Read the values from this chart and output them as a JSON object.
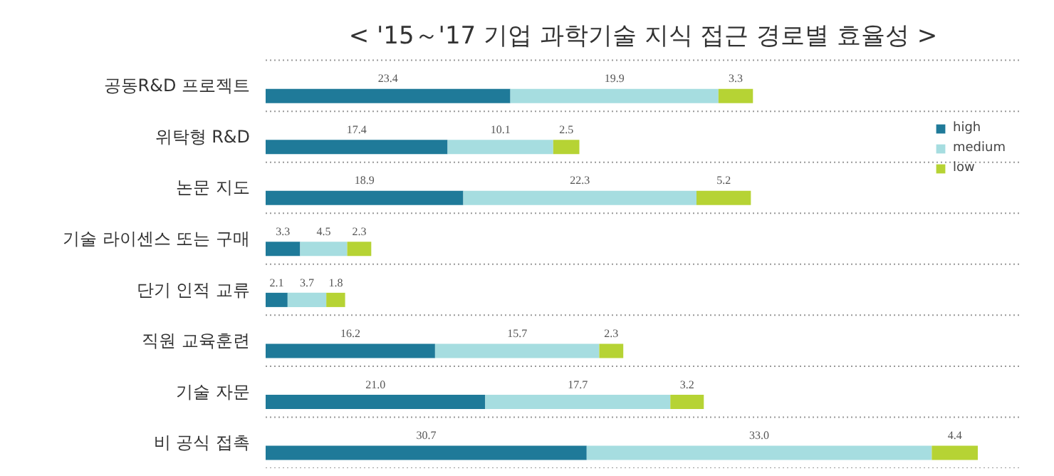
{
  "chart_data": {
    "type": "bar",
    "orientation": "horizontal",
    "stacked": true,
    "grid": "y",
    "legend": "top right",
    "title": "< '15～'17 기업 과학기술 지식 접근 경로별 효율성 >",
    "categories": [
      "공동R&D 프로젝트",
      "위탁형 R&D",
      "논문 지도",
      "기술 라이센스 또는 구매",
      "단기 인적 교류",
      "직원 교육훈련",
      "기술 자문",
      "비 공식 접촉"
    ],
    "series": [
      {
        "name": "high",
        "color": "#1f7a99",
        "values": [
          23.4,
          17.4,
          18.9,
          3.3,
          2.1,
          16.2,
          21.0,
          30.7
        ],
        "value_labels": [
          "23.4",
          "17.4",
          "18.9",
          "3.3",
          "2.1",
          "16.2",
          "21.0",
          "30.7"
        ]
      },
      {
        "name": "medium",
        "color": "#a6dde0",
        "values": [
          19.9,
          10.1,
          22.3,
          4.5,
          3.7,
          15.7,
          17.7,
          33.0
        ],
        "value_labels": [
          "19.9",
          "10.1",
          "22.3",
          "4.5",
          "3.7",
          "15.7",
          "17.7",
          "33.0"
        ]
      },
      {
        "name": "low",
        "color": "#b6d334",
        "values": [
          3.3,
          2.5,
          5.2,
          2.3,
          1.8,
          2.3,
          3.2,
          4.4
        ],
        "value_labels": [
          "3.3",
          "2.5",
          "5.2",
          "2.3",
          "1.8",
          "2.3",
          "3.2",
          "4.4"
        ]
      }
    ]
  }
}
